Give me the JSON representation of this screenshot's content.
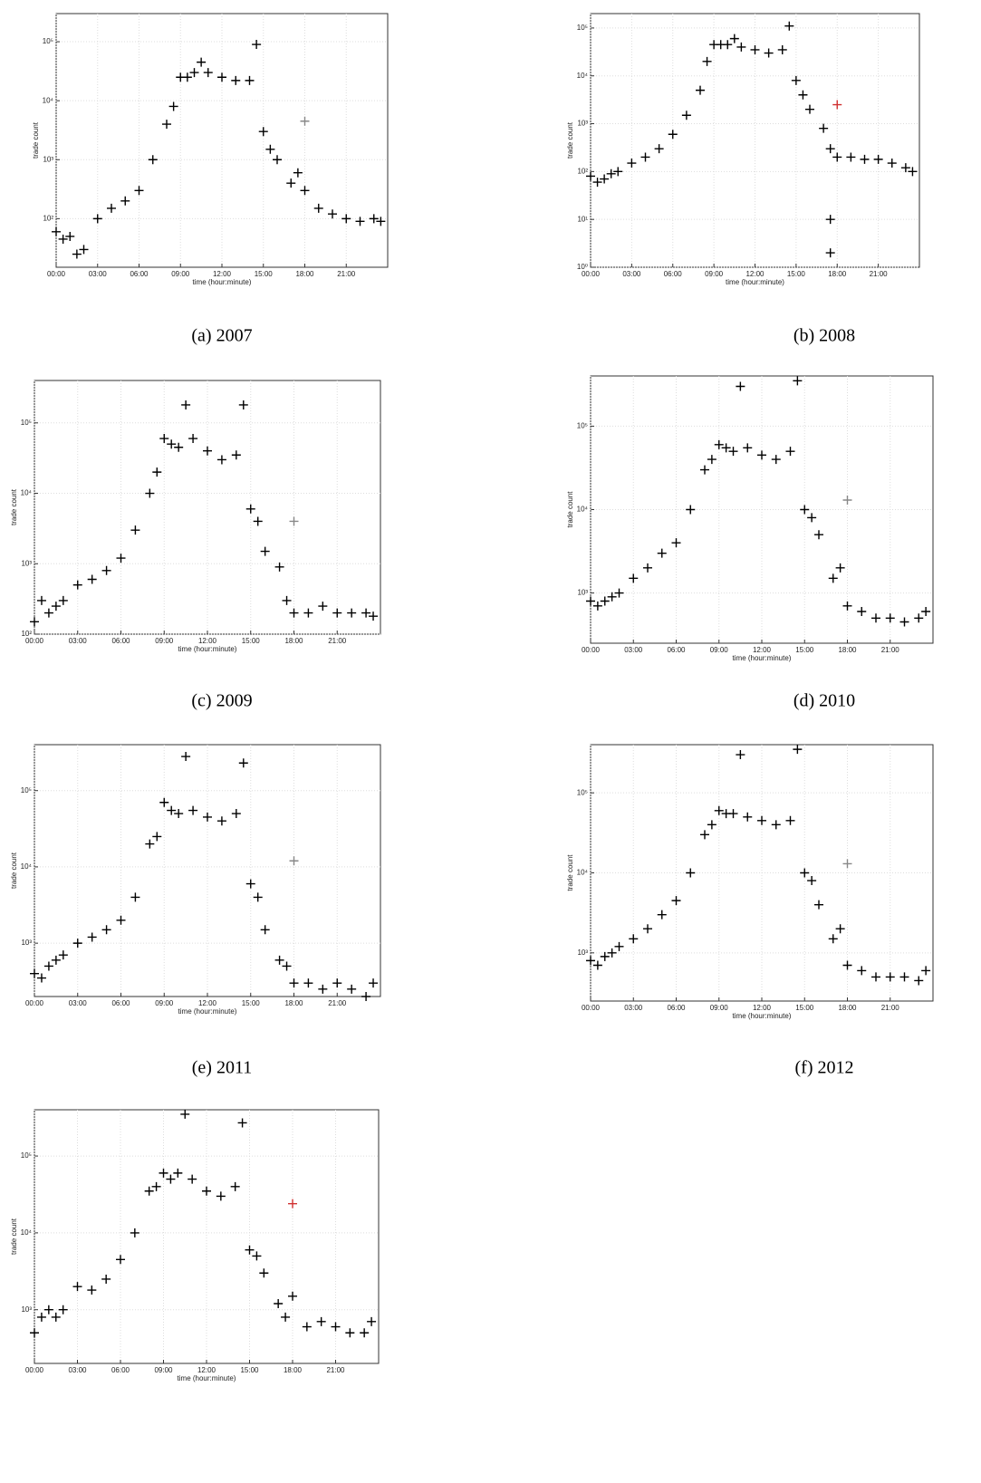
{
  "chart_data": [
    {
      "type": "scatter",
      "caption": "(a) 2007",
      "xlabel": "time (hour:minute)",
      "ylabel": "trade count",
      "log_y": true,
      "grid": true,
      "xlim": [
        0,
        24
      ],
      "xticks": [
        {
          "value": 0,
          "label": "00:00"
        },
        {
          "value": 3,
          "label": "03:00"
        },
        {
          "value": 6,
          "label": "06:00"
        },
        {
          "value": 9,
          "label": "09:00"
        },
        {
          "value": 12,
          "label": "12:00"
        },
        {
          "value": 15,
          "label": "15:00"
        },
        {
          "value": 18,
          "label": "18:00"
        },
        {
          "value": 21,
          "label": "21:00"
        }
      ],
      "ylim": [
        15,
        300000
      ],
      "yticks": [
        {
          "value": 100,
          "label": "10²"
        },
        {
          "value": 1000,
          "label": "10³"
        },
        {
          "value": 10000,
          "label": "10⁴"
        },
        {
          "value": 100000,
          "label": "10⁵"
        }
      ],
      "series": [
        {
          "color": "#000000",
          "x": [
            0,
            0.5,
            1,
            1.5,
            2,
            3,
            4,
            5,
            6,
            7,
            8,
            8.5,
            9,
            9.5,
            10,
            10.5,
            11,
            12,
            13,
            14,
            14.5,
            15,
            15.5,
            16,
            17,
            17.5,
            18,
            19,
            20,
            21,
            22,
            23,
            23.5
          ],
          "values": [
            60,
            45,
            50,
            25,
            30,
            100,
            150,
            200,
            300,
            1000,
            4000,
            8000,
            25000,
            25000,
            30000,
            45000,
            30000,
            25000,
            22000,
            22000,
            90000,
            3000,
            1500,
            1000,
            400,
            600,
            300,
            150,
            120,
            100,
            90,
            100,
            90
          ]
        },
        {
          "color": "#888888",
          "x": [
            18
          ],
          "values": [
            4500
          ]
        }
      ]
    },
    {
      "type": "scatter",
      "caption": "(b) 2008",
      "xlabel": "time (hour:minute)",
      "ylabel": "trade count",
      "log_y": true,
      "grid": true,
      "xlim": [
        0,
        24
      ],
      "xticks": [
        {
          "value": 0,
          "label": "00:00"
        },
        {
          "value": 3,
          "label": "03:00"
        },
        {
          "value": 6,
          "label": "06:00"
        },
        {
          "value": 9,
          "label": "09:00"
        },
        {
          "value": 12,
          "label": "12:00"
        },
        {
          "value": 15,
          "label": "15:00"
        },
        {
          "value": 18,
          "label": "18:00"
        },
        {
          "value": 21,
          "label": "21:00"
        }
      ],
      "ylim": [
        1,
        200000
      ],
      "yticks": [
        {
          "value": 1,
          "label": "10⁰"
        },
        {
          "value": 10,
          "label": "10¹"
        },
        {
          "value": 100,
          "label": "10²"
        },
        {
          "value": 1000,
          "label": "10³"
        },
        {
          "value": 10000,
          "label": "10⁴"
        },
        {
          "value": 100000,
          "label": "10⁵"
        }
      ],
      "series": [
        {
          "color": "#000000",
          "x": [
            0,
            0.5,
            1,
            1.5,
            2,
            3,
            4,
            5,
            6,
            7,
            8,
            8.5,
            9,
            9.5,
            10,
            10.5,
            11,
            12,
            13,
            14,
            14.5,
            15,
            15.5,
            16,
            17,
            17.5,
            17.5,
            17.5,
            18,
            19,
            20,
            21,
            22,
            23,
            23.5
          ],
          "values": [
            80,
            60,
            70,
            90,
            100,
            150,
            200,
            300,
            600,
            1500,
            5000,
            20000,
            45000,
            45000,
            45000,
            60000,
            40000,
            35000,
            30000,
            35000,
            110000,
            8000,
            4000,
            2000,
            800,
            2,
            10,
            300,
            200,
            200,
            180,
            180,
            150,
            120,
            100
          ]
        },
        {
          "color": "#d03030",
          "x": [
            18
          ],
          "values": [
            2500
          ]
        }
      ]
    },
    {
      "type": "scatter",
      "caption": "(c) 2009",
      "xlabel": "time (hour:minute)",
      "ylabel": "trade count",
      "log_y": true,
      "grid": true,
      "xlim": [
        0,
        24
      ],
      "xticks": [
        {
          "value": 0,
          "label": "00:00"
        },
        {
          "value": 3,
          "label": "03:00"
        },
        {
          "value": 6,
          "label": "06:00"
        },
        {
          "value": 9,
          "label": "09:00"
        },
        {
          "value": 12,
          "label": "12:00"
        },
        {
          "value": 15,
          "label": "15:00"
        },
        {
          "value": 18,
          "label": "18:00"
        },
        {
          "value": 21,
          "label": "21:00"
        }
      ],
      "ylim": [
        100,
        400000
      ],
      "yticks": [
        {
          "value": 100,
          "label": "10²"
        },
        {
          "value": 1000,
          "label": "10³"
        },
        {
          "value": 10000,
          "label": "10⁴"
        },
        {
          "value": 100000,
          "label": "10⁵"
        }
      ],
      "series": [
        {
          "color": "#000000",
          "x": [
            0,
            0.5,
            1,
            1.5,
            2,
            3,
            4,
            5,
            6,
            7,
            8,
            8.5,
            9,
            9.5,
            10,
            10.5,
            11,
            12,
            13,
            14,
            14.5,
            15,
            15.5,
            16,
            17,
            17.5,
            18,
            19,
            20,
            21,
            22,
            23,
            23.5
          ],
          "values": [
            150,
            300,
            200,
            250,
            300,
            500,
            600,
            800,
            1200,
            3000,
            10000,
            20000,
            60000,
            50000,
            45000,
            180000,
            60000,
            40000,
            30000,
            35000,
            180000,
            6000,
            4000,
            1500,
            900,
            300,
            200,
            200,
            250,
            200,
            200,
            200,
            180
          ]
        },
        {
          "color": "#888888",
          "x": [
            18
          ],
          "values": [
            4000
          ]
        }
      ]
    },
    {
      "type": "scatter",
      "caption": "(d) 2010",
      "xlabel": "time (hour:minute)",
      "ylabel": "trade count",
      "log_y": true,
      "grid": true,
      "xlim": [
        0,
        24
      ],
      "xticks": [
        {
          "value": 0,
          "label": "00:00"
        },
        {
          "value": 3,
          "label": "03:00"
        },
        {
          "value": 6,
          "label": "06:00"
        },
        {
          "value": 9,
          "label": "09:00"
        },
        {
          "value": 12,
          "label": "12:00"
        },
        {
          "value": 15,
          "label": "15:00"
        },
        {
          "value": 18,
          "label": "18:00"
        },
        {
          "value": 21,
          "label": "21:00"
        }
      ],
      "ylim": [
        250,
        400000
      ],
      "yticks": [
        {
          "value": 1000,
          "label": "10³"
        },
        {
          "value": 10000,
          "label": "10⁴"
        },
        {
          "value": 100000,
          "label": "10⁵"
        }
      ],
      "series": [
        {
          "color": "#000000",
          "x": [
            0,
            0.5,
            1,
            1.5,
            2,
            3,
            4,
            5,
            6,
            7,
            8,
            8.5,
            9,
            9.5,
            10,
            10.5,
            11,
            12,
            13,
            14,
            14.5,
            15,
            15.5,
            16,
            17,
            17.5,
            18,
            19,
            20,
            21,
            22,
            23,
            23.5
          ],
          "values": [
            800,
            700,
            800,
            900,
            1000,
            1500,
            2000,
            3000,
            4000,
            10000,
            30000,
            40000,
            60000,
            55000,
            50000,
            300000,
            55000,
            45000,
            40000,
            50000,
            350000,
            10000,
            8000,
            5000,
            1500,
            2000,
            700,
            600,
            500,
            500,
            450,
            500,
            600
          ]
        },
        {
          "color": "#888888",
          "x": [
            18
          ],
          "values": [
            13000
          ]
        }
      ]
    },
    {
      "type": "scatter",
      "caption": "(e) 2011",
      "xlabel": "time (hour:minute)",
      "ylabel": "trade count",
      "log_y": true,
      "grid": true,
      "xlim": [
        0,
        24
      ],
      "xticks": [
        {
          "value": 0,
          "label": "00:00"
        },
        {
          "value": 3,
          "label": "03:00"
        },
        {
          "value": 6,
          "label": "06:00"
        },
        {
          "value": 9,
          "label": "09:00"
        },
        {
          "value": 12,
          "label": "12:00"
        },
        {
          "value": 15,
          "label": "15:00"
        },
        {
          "value": 18,
          "label": "18:00"
        },
        {
          "value": 21,
          "label": "21:00"
        }
      ],
      "ylim": [
        200,
        400000
      ],
      "yticks": [
        {
          "value": 1000,
          "label": "10³"
        },
        {
          "value": 10000,
          "label": "10⁴"
        },
        {
          "value": 100000,
          "label": "10⁵"
        }
      ],
      "series": [
        {
          "color": "#000000",
          "x": [
            0,
            0.5,
            1,
            1.5,
            2,
            3,
            4,
            5,
            6,
            7,
            8,
            8.5,
            9,
            9.5,
            10,
            10.5,
            11,
            12,
            13,
            14,
            14.5,
            15,
            15.5,
            16,
            17,
            17.5,
            18,
            19,
            20,
            21,
            22,
            23,
            23.5
          ],
          "values": [
            400,
            350,
            500,
            600,
            700,
            1000,
            1200,
            1500,
            2000,
            4000,
            20000,
            25000,
            70000,
            55000,
            50000,
            280000,
            55000,
            45000,
            40000,
            50000,
            230000,
            6000,
            4000,
            1500,
            600,
            500,
            300,
            300,
            250,
            300,
            250,
            200,
            300
          ]
        },
        {
          "color": "#888888",
          "x": [
            18
          ],
          "values": [
            12000
          ]
        }
      ]
    },
    {
      "type": "scatter",
      "caption": "(f) 2012",
      "xlabel": "time (hour:minute)",
      "ylabel": "trade count",
      "log_y": true,
      "grid": true,
      "xlim": [
        0,
        24
      ],
      "xticks": [
        {
          "value": 0,
          "label": "00:00"
        },
        {
          "value": 3,
          "label": "03:00"
        },
        {
          "value": 6,
          "label": "06:00"
        },
        {
          "value": 9,
          "label": "09:00"
        },
        {
          "value": 12,
          "label": "12:00"
        },
        {
          "value": 15,
          "label": "15:00"
        },
        {
          "value": 18,
          "label": "18:00"
        },
        {
          "value": 21,
          "label": "21:00"
        }
      ],
      "ylim": [
        250,
        400000
      ],
      "yticks": [
        {
          "value": 1000,
          "label": "10³"
        },
        {
          "value": 10000,
          "label": "10⁴"
        },
        {
          "value": 100000,
          "label": "10⁵"
        }
      ],
      "series": [
        {
          "color": "#000000",
          "x": [
            0,
            0.5,
            1,
            1.5,
            2,
            3,
            4,
            5,
            6,
            7,
            8,
            8.5,
            9,
            9.5,
            10,
            10.5,
            11,
            12,
            13,
            14,
            14.5,
            15,
            15.5,
            16,
            17,
            17.5,
            18,
            19,
            20,
            21,
            22,
            23,
            23.5
          ],
          "values": [
            800,
            700,
            900,
            1000,
            1200,
            1500,
            2000,
            3000,
            4500,
            10000,
            30000,
            40000,
            60000,
            55000,
            55000,
            300000,
            50000,
            45000,
            40000,
            45000,
            350000,
            10000,
            8000,
            4000,
            1500,
            2000,
            700,
            600,
            500,
            500,
            500,
            450,
            600
          ]
        },
        {
          "color": "#888888",
          "x": [
            18
          ],
          "values": [
            13000
          ]
        }
      ]
    },
    {
      "type": "scatter",
      "xlabel": "time (hour:minute)",
      "ylabel": "trade count",
      "log_y": true,
      "grid": true,
      "xlim": [
        0,
        24
      ],
      "xticks": [
        {
          "value": 0,
          "label": "00:00"
        },
        {
          "value": 3,
          "label": "03:00"
        },
        {
          "value": 6,
          "label": "06:00"
        },
        {
          "value": 9,
          "label": "09:00"
        },
        {
          "value": 12,
          "label": "12:00"
        },
        {
          "value": 15,
          "label": "15:00"
        },
        {
          "value": 18,
          "label": "18:00"
        },
        {
          "value": 21,
          "label": "21:00"
        }
      ],
      "ylim": [
        200,
        400000
      ],
      "yticks": [
        {
          "value": 1000,
          "label": "10³"
        },
        {
          "value": 10000,
          "label": "10⁴"
        },
        {
          "value": 100000,
          "label": "10⁵"
        }
      ],
      "series": [
        {
          "color": "#000000",
          "x": [
            0,
            0.5,
            1,
            1.5,
            2,
            3,
            4,
            5,
            6,
            7,
            8,
            8.5,
            9,
            9.5,
            10,
            10.5,
            11,
            12,
            13,
            14,
            14.5,
            15,
            15.5,
            16,
            17,
            17.5,
            18,
            19,
            20,
            21,
            22,
            23,
            23.5
          ],
          "values": [
            500,
            800,
            1000,
            800,
            1000,
            2000,
            1800,
            2500,
            4500,
            10000,
            35000,
            40000,
            60000,
            50000,
            60000,
            350000,
            50000,
            35000,
            30000,
            40000,
            270000,
            6000,
            5000,
            3000,
            1200,
            800,
            1500,
            600,
            700,
            600,
            500,
            500,
            700
          ]
        },
        {
          "color": "#d03030",
          "x": [
            18
          ],
          "values": [
            24000
          ]
        }
      ]
    }
  ]
}
